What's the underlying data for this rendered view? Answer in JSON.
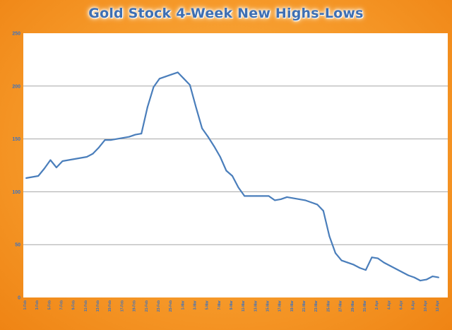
{
  "chart_data": {
    "type": "line",
    "title": "Gold Stock 4-Week New Highs-Lows",
    "xlabel": "",
    "ylabel": "",
    "ylim": [
      0,
      250
    ],
    "y_ticks": [
      0,
      50,
      100,
      150,
      200,
      250
    ],
    "grid": true,
    "legend": "none",
    "colors": {
      "line": "#4a7ebb",
      "plot_bg": "#ffffff",
      "gridline": "#a6a6a6",
      "tick_text": "#3b73c2",
      "title": "#3e6fb3",
      "frame": "#f69a2a"
    },
    "values": [
      113,
      114,
      115,
      122,
      130,
      123,
      129,
      130,
      131,
      132,
      133,
      136,
      142,
      149,
      149,
      150,
      151,
      152,
      154,
      155,
      180,
      199,
      207,
      209,
      211,
      213,
      207,
      201,
      180,
      160,
      152,
      143,
      133,
      120,
      115,
      104,
      96,
      96,
      96,
      96,
      96,
      92,
      93,
      95,
      94,
      93,
      92,
      90,
      88,
      82,
      58,
      42,
      35,
      33,
      31,
      28,
      26,
      38,
      37,
      33,
      30,
      27,
      24,
      21,
      19,
      16,
      17,
      20,
      19
    ],
    "categories": [
      "1-Feb",
      "",
      "3-Feb",
      "",
      "5-Feb",
      "",
      "7-Feb",
      "",
      "9-Feb",
      "",
      "11-Feb",
      "",
      "13-Feb",
      "",
      "15-Feb",
      "",
      "17-Feb",
      "",
      "19-Feb",
      "",
      "21-Feb",
      "",
      "23-Feb",
      "",
      "25-Feb",
      "",
      "1-Mar",
      "",
      "3-Mar",
      "",
      "5-Mar",
      "",
      "7-Mar",
      "",
      "9-Mar",
      "",
      "11-Mar",
      "",
      "13-Mar",
      "",
      "15-Mar",
      "",
      "17-Mar",
      "",
      "19-Mar",
      "",
      "21-Mar",
      "",
      "23-Mar",
      "",
      "25-Mar",
      "",
      "27-Mar",
      "",
      "29-Mar",
      "",
      "31-Mar",
      "",
      "2-Apr",
      "",
      "4-Apr",
      "",
      "6-Apr",
      "",
      "8-Apr",
      "",
      "10-Apr",
      "",
      "12-Apr"
    ]
  }
}
